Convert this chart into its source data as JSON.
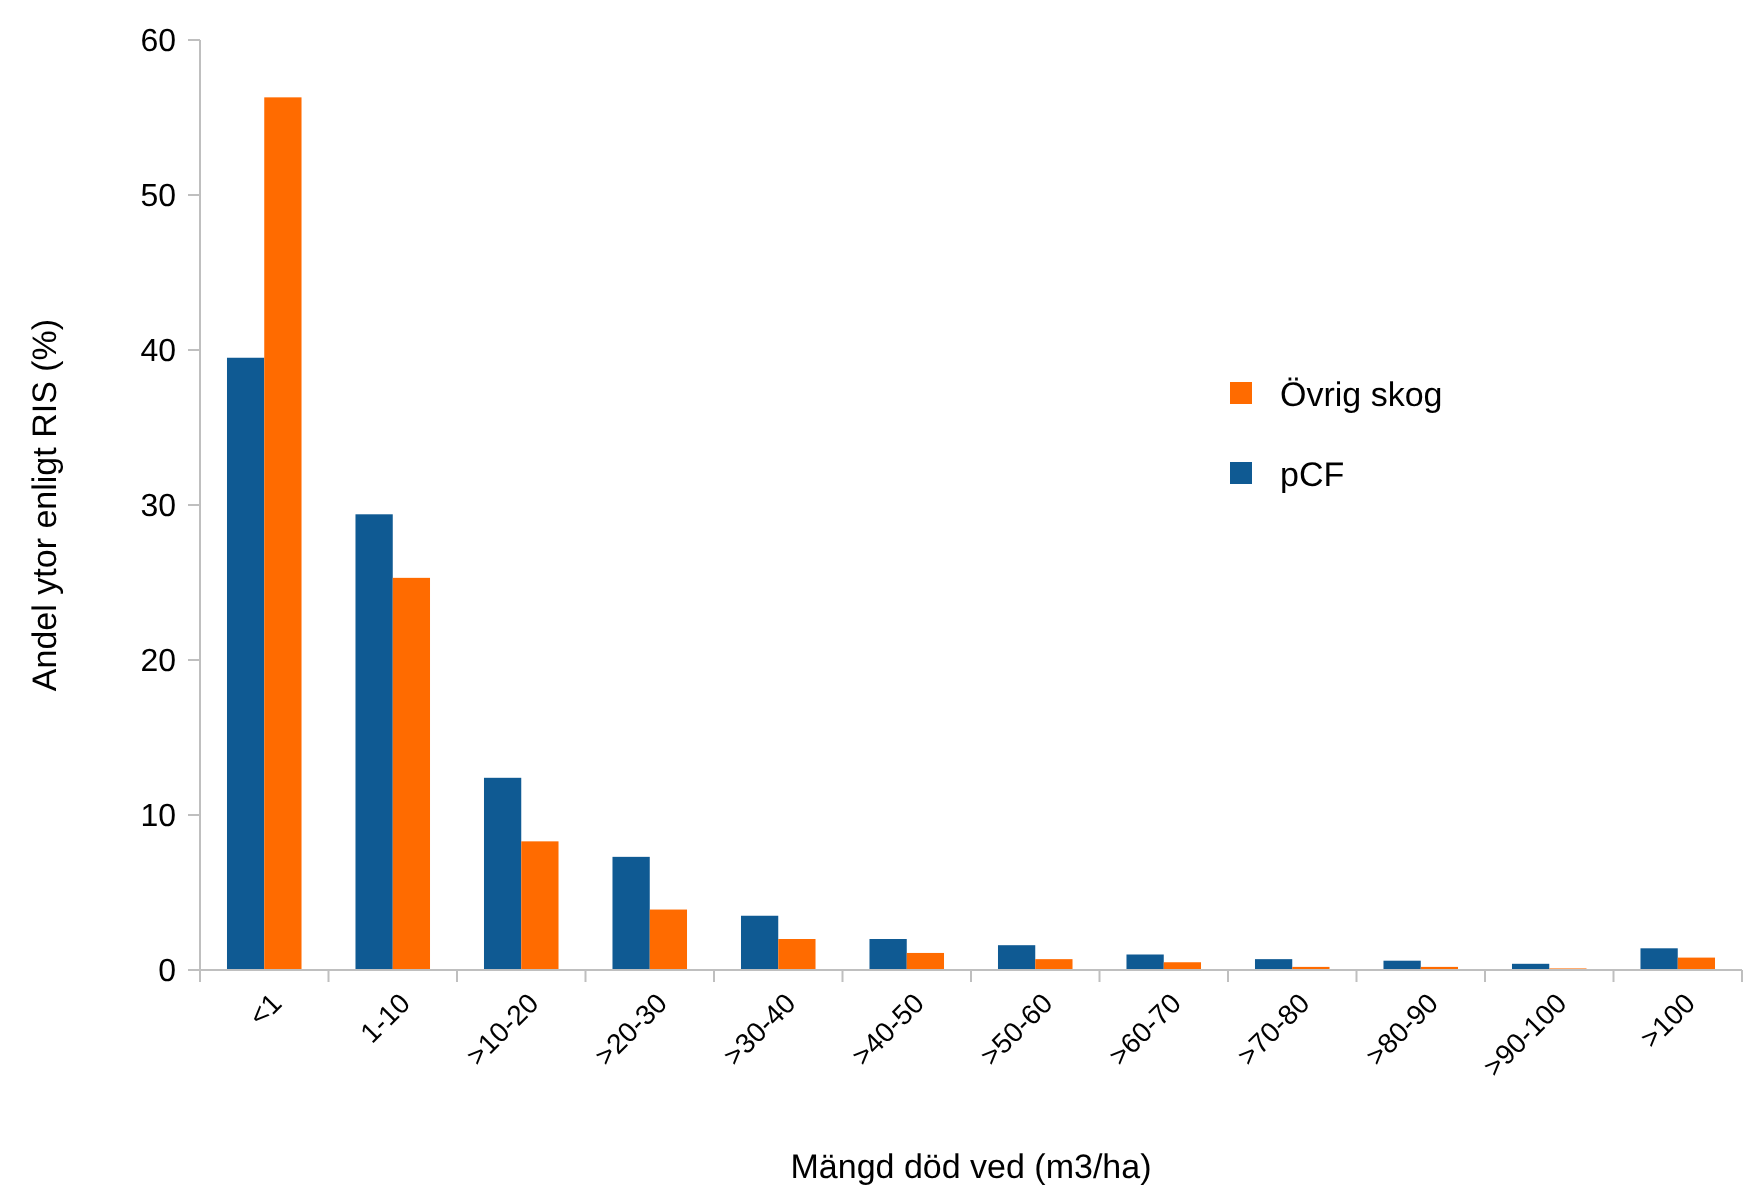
{
  "chart_data": {
    "type": "bar",
    "xlabel": "Mängd död ved (m3/ha)",
    "ylabel": "Andel ytor enligt RIS (%)",
    "categories": [
      "<1",
      "1-10",
      ">10-20",
      ">20-30",
      ">30-40",
      ">40-50",
      ">50-60",
      ">60-70",
      ">70-80",
      ">80-90",
      ">90-100",
      ">100"
    ],
    "series": [
      {
        "name": "pCF",
        "color": "#0f5a93",
        "values": [
          39.5,
          29.4,
          12.4,
          7.3,
          3.5,
          2.0,
          1.6,
          1.0,
          0.7,
          0.6,
          0.4,
          1.4
        ]
      },
      {
        "name": "Övrig skog",
        "color": "#ff6b00",
        "values": [
          56.3,
          25.3,
          8.3,
          3.9,
          2.0,
          1.1,
          0.7,
          0.5,
          0.2,
          0.2,
          0.1,
          0.8
        ]
      }
    ],
    "ylim": [
      0,
      60
    ],
    "yticks": [
      0,
      10,
      20,
      30,
      40,
      50,
      60
    ],
    "grid": false,
    "legend": "right"
  }
}
